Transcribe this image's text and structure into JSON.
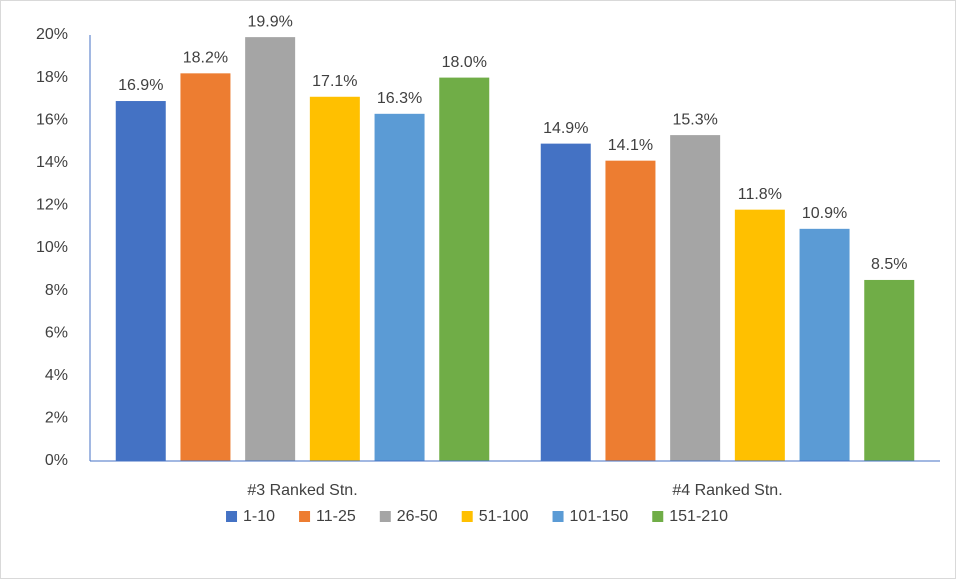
{
  "chart_data": {
    "type": "bar",
    "categories": [
      "#3 Ranked Stn.",
      "#4 Ranked Stn."
    ],
    "series": [
      {
        "name": "1-10",
        "color": "#4472c4",
        "values": [
          16.9,
          14.9
        ],
        "value_labels": [
          "16.9%",
          "14.9%"
        ]
      },
      {
        "name": "11-25",
        "color": "#ed7d31",
        "values": [
          18.2,
          14.1
        ],
        "value_labels": [
          "18.2%",
          "14.1%"
        ]
      },
      {
        "name": "26-50",
        "color": "#a5a5a5",
        "values": [
          19.9,
          15.3
        ],
        "value_labels": [
          "19.9%",
          "15.3%"
        ]
      },
      {
        "name": "51-100",
        "color": "#ffc000",
        "values": [
          17.1,
          11.8
        ],
        "value_labels": [
          "17.1%",
          "11.8%"
        ]
      },
      {
        "name": "101-150",
        "color": "#5b9bd5",
        "values": [
          16.3,
          10.9
        ],
        "value_labels": [
          "16.3%",
          "10.9%"
        ]
      },
      {
        "name": "151-210",
        "color": "#70ad47",
        "values": [
          18.0,
          8.5
        ],
        "value_labels": [
          "18.0%",
          "8.5%"
        ]
      }
    ],
    "ylim": [
      0,
      20
    ],
    "yticks": [
      {
        "value": 0,
        "label": "0%"
      },
      {
        "value": 2,
        "label": "2%"
      },
      {
        "value": 4,
        "label": "4%"
      },
      {
        "value": 6,
        "label": "6%"
      },
      {
        "value": 8,
        "label": "8%"
      },
      {
        "value": 10,
        "label": "10%"
      },
      {
        "value": 12,
        "label": "12%"
      },
      {
        "value": 14,
        "label": "14%"
      },
      {
        "value": 16,
        "label": "16%"
      },
      {
        "value": 18,
        "label": "18%"
      },
      {
        "value": 20,
        "label": "20%"
      }
    ],
    "grid": false,
    "legend": "bottom"
  }
}
